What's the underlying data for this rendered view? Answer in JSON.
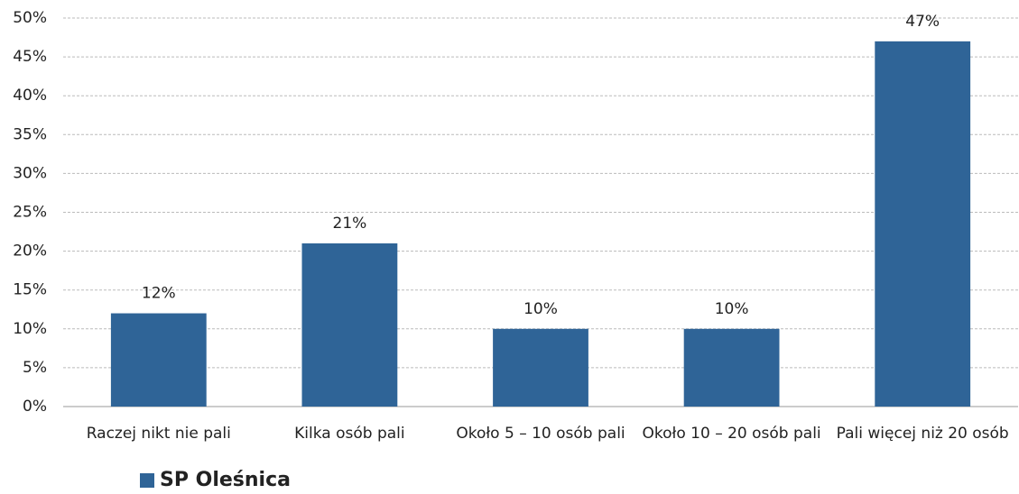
{
  "chart_data": {
    "type": "bar",
    "categories": [
      "Raczej nikt nie pali",
      "Kilka osób pali",
      "Około 5 – 10 osób pali",
      "Około 10 – 20 osób pali",
      "Pali więcej niż 20 osób"
    ],
    "series": [
      {
        "name": "SP Oleśnica",
        "color": "#2f6497",
        "values": [
          12,
          21,
          10,
          10,
          47
        ],
        "value_labels": [
          "12%",
          "21%",
          "10%",
          "10%",
          "47%"
        ]
      }
    ],
    "ylim": [
      0,
      50
    ],
    "yticks": [
      {
        "value": 0,
        "label": "0%"
      },
      {
        "value": 5,
        "label": "5%"
      },
      {
        "value": 10,
        "label": "10%"
      },
      {
        "value": 15,
        "label": "15%"
      },
      {
        "value": 20,
        "label": "20%"
      },
      {
        "value": 25,
        "label": "25%"
      },
      {
        "value": 30,
        "label": "30%"
      },
      {
        "value": 35,
        "label": "35%"
      },
      {
        "value": 40,
        "label": "40%"
      },
      {
        "value": 45,
        "label": "45%"
      },
      {
        "value": 50,
        "label": "50%"
      }
    ],
    "grid": true,
    "legend": "bottom-left"
  }
}
